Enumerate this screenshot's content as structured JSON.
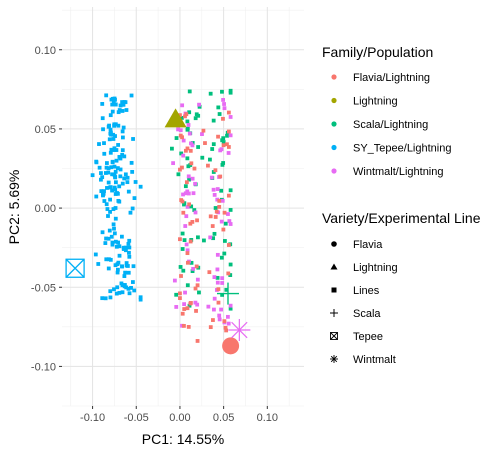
{
  "chart_data": {
    "type": "scatter",
    "xlabel": "PC1: 14.55%",
    "ylabel": "PC2: 5.69%",
    "xlim": [
      -0.135,
      0.142
    ],
    "ylim": [
      -0.125,
      0.127
    ],
    "x_ticks": [
      -0.1,
      -0.05,
      0.0,
      0.05,
      0.1
    ],
    "y_ticks": [
      -0.1,
      -0.05,
      0.0,
      0.05,
      0.1
    ],
    "x_tick_labels": [
      "-0.10",
      "-0.05",
      "0.00",
      "0.05",
      "0.10"
    ],
    "y_tick_labels": [
      "-0.10",
      "-0.05",
      "0.00",
      "0.05",
      "0.10"
    ],
    "grid": true,
    "legend_placement": "right",
    "color_legend": {
      "title": "Family/Population",
      "items": [
        {
          "label": "Flavia/Lightning",
          "color": "#F8766D"
        },
        {
          "label": "Lightning",
          "color": "#A3A500"
        },
        {
          "label": "Scala/Lightning",
          "color": "#00BF7D"
        },
        {
          "label": "SY_Tepee/Lightning",
          "color": "#00B0F6"
        },
        {
          "label": "Wintmalt/Lightning",
          "color": "#E76BF3"
        }
      ]
    },
    "shape_legend": {
      "title": "Variety/Experimental Line",
      "items": [
        {
          "label": "Flavia",
          "shape": "circle"
        },
        {
          "label": "Lightning",
          "shape": "triangle"
        },
        {
          "label": "Lines",
          "shape": "square"
        },
        {
          "label": "Scala",
          "shape": "plus"
        },
        {
          "label": "Tepee",
          "shape": "boxed-x"
        },
        {
          "label": "Wintmalt",
          "shape": "asterisk"
        }
      ]
    },
    "parents": [
      {
        "variety": "Lightning",
        "x": -0.005,
        "y": 0.056,
        "color": "#A3A500",
        "shape": "triangle"
      },
      {
        "variety": "Tepee",
        "x": -0.12,
        "y": -0.038,
        "color": "#00B0F6",
        "shape": "boxed-x"
      },
      {
        "variety": "Flavia",
        "x": 0.058,
        "y": -0.087,
        "color": "#F8766D",
        "shape": "circle"
      },
      {
        "variety": "Scala",
        "x": 0.055,
        "y": -0.054,
        "color": "#00BF7D",
        "shape": "plus"
      },
      {
        "variety": "Wintmalt",
        "x": 0.068,
        "y": -0.077,
        "color": "#E76BF3",
        "shape": "asterisk"
      }
    ],
    "line_clusters": [
      {
        "population": "SY_Tepee/Lightning",
        "color": "#00B0F6",
        "n": 190,
        "x_range": [
          -0.1,
          -0.045
        ],
        "y_range": [
          -0.058,
          0.073
        ],
        "approx_center": [
          -0.072,
          0.01
        ]
      },
      {
        "population": "Scala/Lightning",
        "color": "#00BF7D",
        "n": 80,
        "x_range": [
          -0.01,
          0.058
        ],
        "y_range": [
          -0.065,
          0.075
        ],
        "approx_center": [
          0.03,
          0.015
        ]
      },
      {
        "population": "Wintmalt/Lightning",
        "color": "#E76BF3",
        "n": 75,
        "x_range": [
          -0.025,
          0.058
        ],
        "y_range": [
          -0.075,
          0.07
        ],
        "approx_center": [
          0.03,
          0.005
        ]
      },
      {
        "population": "Flavia/Lightning",
        "color": "#F8766D",
        "n": 70,
        "x_range": [
          0.0,
          0.056
        ],
        "y_range": [
          -0.09,
          0.065
        ],
        "approx_center": [
          0.03,
          -0.01
        ]
      }
    ]
  }
}
